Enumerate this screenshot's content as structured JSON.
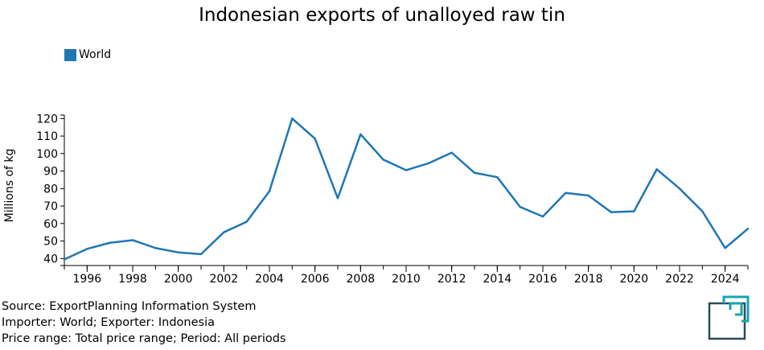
{
  "title": "Indonesian exports of unalloyed raw tin",
  "legend": {
    "label": "World",
    "color": "#1f77b4"
  },
  "footer": {
    "line1": "Source: ExportPlanning Information System",
    "line2": "Importer: World; Exporter: Indonesia",
    "line3": "Price range: Total price range; Period: All periods"
  },
  "logo": {
    "icon": "exportplanning-logo-icon",
    "color_dark": "#2d4a5a",
    "color_teal": "#1aa3b0"
  },
  "chart_data": {
    "type": "line",
    "title": "Indonesian exports of unalloyed raw tin",
    "xlabel": "",
    "ylabel": "Millions of kg",
    "xlim": [
      1995,
      2025
    ],
    "ylim": [
      36,
      122
    ],
    "yticks": [
      40,
      50,
      60,
      70,
      80,
      90,
      100,
      110,
      120
    ],
    "xticks": [
      1996,
      1998,
      2000,
      2002,
      2004,
      2006,
      2008,
      2010,
      2012,
      2014,
      2016,
      2018,
      2020,
      2022,
      2024
    ],
    "grid": false,
    "legend_position": "top-left",
    "series": [
      {
        "name": "World",
        "color": "#1f77b4",
        "x": [
          1995,
          1996,
          1997,
          1998,
          1999,
          2000,
          2001,
          2002,
          2003,
          2004,
          2005,
          2006,
          2007,
          2008,
          2009,
          2010,
          2011,
          2012,
          2013,
          2014,
          2015,
          2016,
          2017,
          2018,
          2019,
          2020,
          2021,
          2022,
          2023,
          2024,
          2025
        ],
        "y": [
          39.5,
          45.5,
          49,
          50.5,
          46,
          43.5,
          42.5,
          55,
          61,
          78.5,
          120,
          108.5,
          74.5,
          111,
          96.5,
          90.5,
          94.5,
          100.5,
          89,
          86.5,
          69.5,
          64,
          77.5,
          76,
          66.5,
          67,
          91,
          80,
          67,
          46,
          57
        ]
      }
    ]
  }
}
